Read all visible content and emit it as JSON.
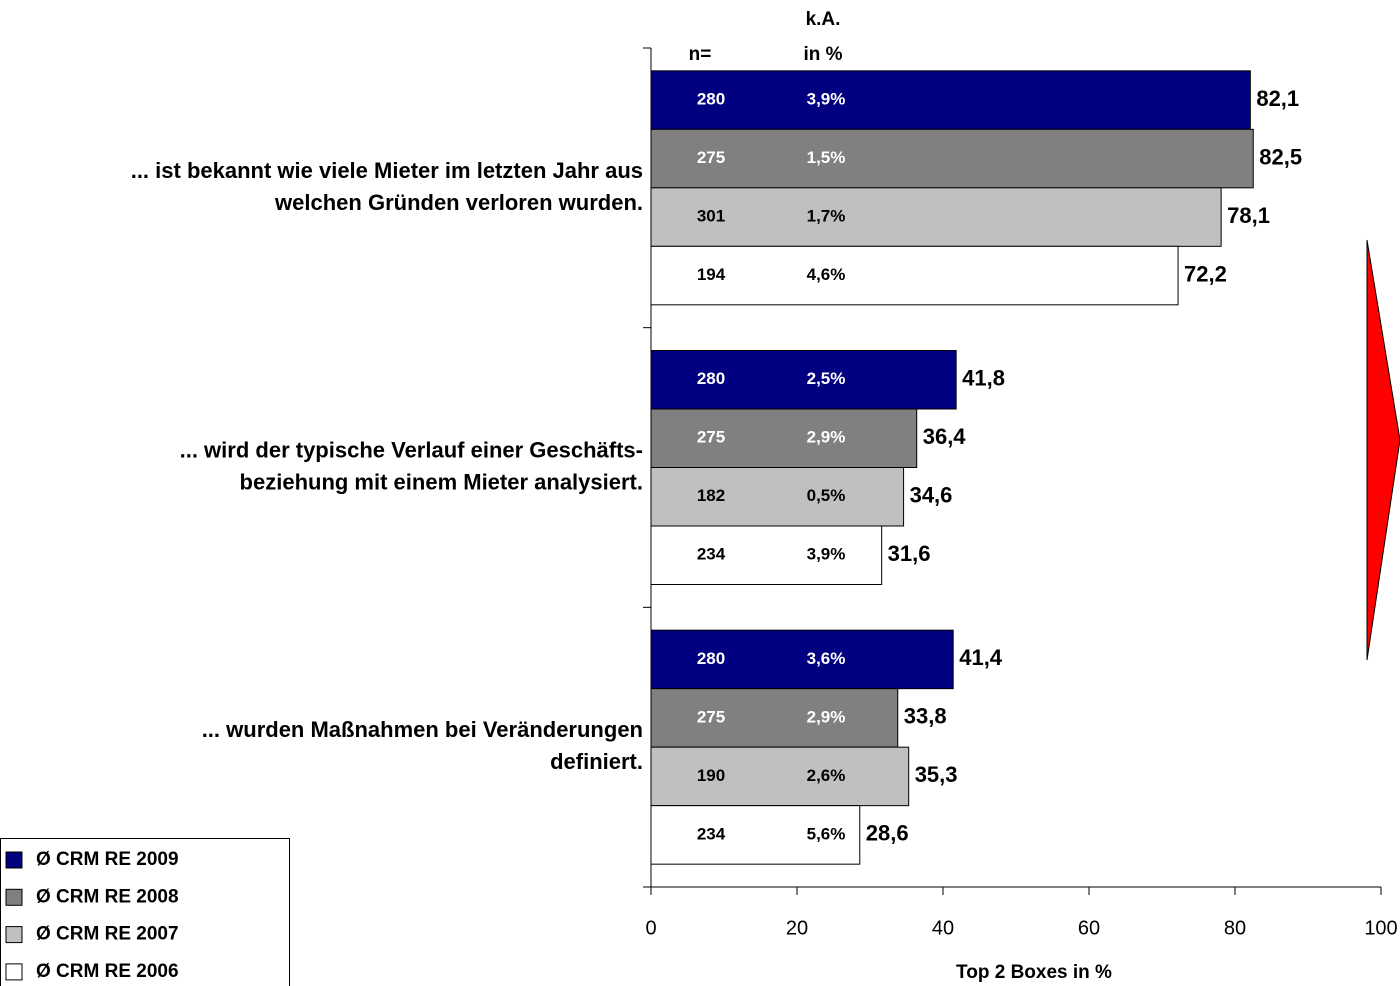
{
  "chart_data": {
    "type": "barh",
    "categories": [
      "... ist bekannt wie viele Mieter im letzten Jahr aus\nwelchen Gründen verloren wurden.",
      "... wird der typische Verlauf einer Geschäfts-\nbeziehung mit einem Mieter analysiert.",
      "... wurden Maßnahmen bei Veränderungen\ndefiniert."
    ],
    "series": [
      {
        "name": "Ø CRM RE 2009",
        "color": "#000080",
        "values": [
          82.1,
          41.8,
          41.4
        ],
        "value_labels": [
          "82,1",
          "41,8",
          "41,4"
        ],
        "n": [
          280,
          280,
          280
        ],
        "ka": [
          "3,9%",
          "2,5%",
          "3,6%"
        ]
      },
      {
        "name": "Ø CRM RE 2008",
        "color": "#808080",
        "values": [
          82.5,
          36.4,
          33.8
        ],
        "value_labels": [
          "82,5",
          "36,4",
          "33,8"
        ],
        "n": [
          275,
          275,
          275
        ],
        "ka": [
          "1,5%",
          "2,9%",
          "2,9%"
        ]
      },
      {
        "name": "Ø CRM RE 2007",
        "color": "#c0c0c0",
        "values": [
          78.1,
          34.6,
          35.3
        ],
        "value_labels": [
          "78,1",
          "34,6",
          "35,3"
        ],
        "n": [
          301,
          182,
          190
        ],
        "ka": [
          "1,7%",
          "0,5%",
          "2,6%"
        ]
      },
      {
        "name": "Ø CRM RE 2006",
        "color": "#ffffff",
        "values": [
          72.2,
          31.6,
          28.6
        ],
        "value_labels": [
          "72,2",
          "31,6",
          "28,6"
        ],
        "n": [
          194,
          234,
          234
        ],
        "ka": [
          "4,6%",
          "3,9%",
          "5,6%"
        ]
      }
    ],
    "n_header": "n=",
    "ka_header": [
      "k.A.",
      "in %"
    ],
    "xlabel": "Top 2 Boxes in %",
    "xlim": [
      0,
      100
    ],
    "xticks": [
      0,
      20,
      40,
      60,
      80,
      100
    ],
    "legend": "bottom-left"
  }
}
